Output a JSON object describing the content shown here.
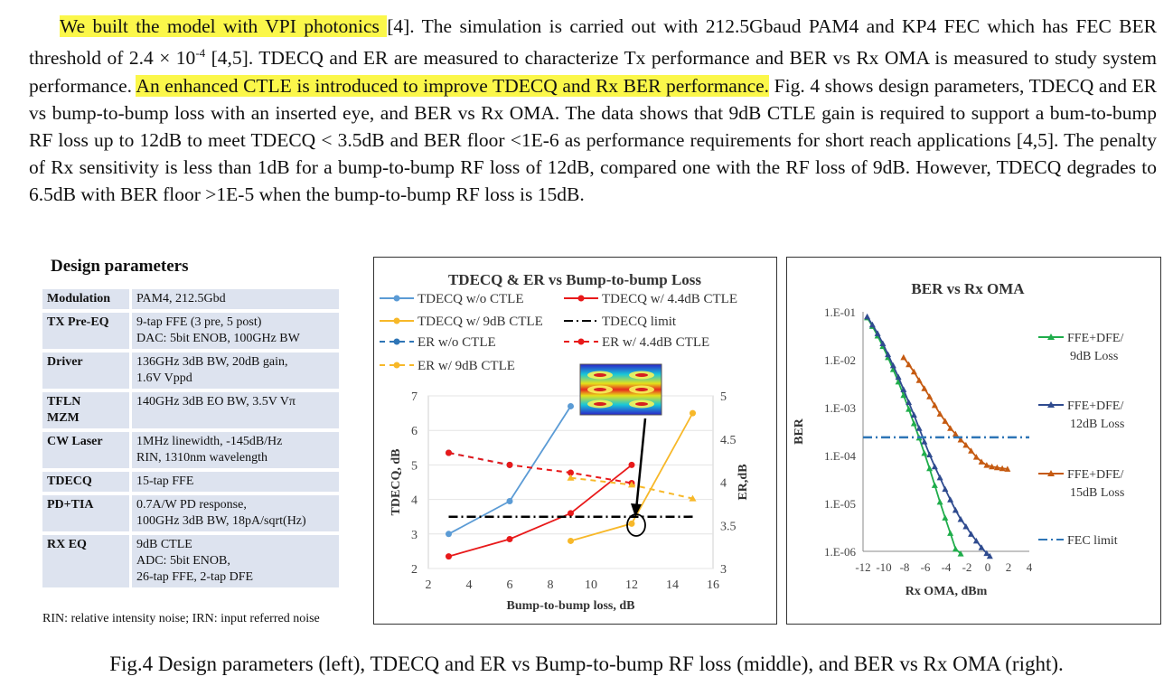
{
  "paragraph": {
    "hl1": "We built the model with VPI photonics ",
    "p1": "[4]. The simulation is carried out with 212.5Gbaud PAM4 and KP4 FEC which has FEC BER threshold of 2.4 × 10",
    "sup": "-4",
    "p2": " [4,5]. TDECQ and ER are measured to characterize Tx performance and BER vs Rx OMA is measured to study system performance. ",
    "hl2": "An enhanced CTLE is introduced to improve TDECQ and Rx BER performance.",
    "p3": " Fig. 4 shows design parameters, TDECQ and ER vs bump-to-bump loss with an inserted eye, and BER vs Rx OMA. The data shows that 9dB CTLE gain is required to support a bum-to-bump RF loss up to 12dB to meet TDECQ < 3.5dB and BER floor <1E-6 as performance requirements for short reach applications [4,5]. The penalty of Rx sensitivity is less than 1dB for a bump-to-bump RF loss of 12dB, compared one with the RF loss of 9dB. However, TDECQ degrades to 6.5dB with BER floor >1E-5 when the bump-to-bump RF loss is 15dB."
  },
  "design": {
    "title": "Design parameters",
    "rows": [
      {
        "k": "Modulation",
        "v": "PAM4, 212.5Gbd"
      },
      {
        "k": "TX Pre-EQ",
        "v": "9-tap FFE (3 pre, 5 post)\nDAC: 5bit ENOB, 100GHz BW"
      },
      {
        "k": "Driver",
        "v": "136GHz 3dB BW, 20dB gain,\n1.6V Vppd"
      },
      {
        "k": "TFLN\nMZM",
        "v": "140GHz 3dB EO BW, 3.5V Vπ"
      },
      {
        "k": "CW Laser",
        "v": "1MHz linewidth, -145dB/Hz\nRIN, 1310nm wavelength"
      },
      {
        "k": "TDECQ",
        "v": "15-tap FFE"
      },
      {
        "k": "PD+TIA",
        "v": "0.7A/W PD response,\n100GHz 3dB BW, 18pA/sqrt(Hz)"
      },
      {
        "k": "RX EQ",
        "v": "9dB CTLE\nADC: 5bit ENOB,\n26-tap FFE, 2-tap DFE"
      }
    ],
    "footnote": "RIN: relative intensity noise; IRN: input referred noise"
  },
  "chart_data": [
    {
      "type": "line",
      "title": "TDECQ & ER vs Bump-to-bump  Loss",
      "xlabel": "Bump-to-bump loss, dB",
      "ylabel": "TDECQ, dB",
      "y2label": "ER,dB",
      "xlim": [
        2,
        16
      ],
      "ylim": [
        2,
        7
      ],
      "y2lim": [
        3,
        5
      ],
      "xticks": [
        "2",
        "4",
        "6",
        "8",
        "10",
        "12",
        "14",
        "16"
      ],
      "yticks": [
        "2",
        "3",
        "4",
        "5",
        "6",
        "7"
      ],
      "y2ticks": [
        "3",
        "3.5",
        "4",
        "4.5",
        "5"
      ],
      "legend_position": "top",
      "series": [
        {
          "name": "TDECQ w/o CTLE",
          "color": "#5b9bd5",
          "axis": "left",
          "style": "solid",
          "x": [
            3,
            6,
            9
          ],
          "y": [
            3.0,
            3.95,
            6.7
          ]
        },
        {
          "name": "TDECQ w/ 4.4dB CTLE",
          "color": "#e8191a",
          "axis": "left",
          "style": "solid",
          "x": [
            3,
            6,
            9,
            12
          ],
          "y": [
            2.35,
            2.85,
            3.6,
            5.0
          ]
        },
        {
          "name": "TDECQ w/ 9dB CTLE",
          "color": "#f7b829",
          "axis": "left",
          "style": "solid",
          "x": [
            9,
            12,
            15
          ],
          "y": [
            2.8,
            3.3,
            6.5
          ]
        },
        {
          "name": "TDECQ limit",
          "color": "#000000",
          "axis": "left",
          "style": "dashdot",
          "x": [
            3,
            15
          ],
          "y": [
            3.5,
            3.5
          ]
        },
        {
          "name": "ER w/o CTLE",
          "color": "#2e75b6",
          "axis": "right",
          "style": "dashed",
          "x": [
            3,
            6
          ],
          "y": [
            4.34,
            4.2
          ]
        },
        {
          "name": "ER w/ 4.4dB CTLE",
          "color": "#e8191a",
          "axis": "right",
          "style": "dashed",
          "x": [
            3,
            6,
            9,
            12
          ],
          "y": [
            4.34,
            4.2,
            4.11,
            3.99
          ]
        },
        {
          "name": "ER w/ 9dB CTLE",
          "color": "#f7b829",
          "axis": "right",
          "style": "dashed",
          "x": [
            9,
            12,
            15
          ],
          "y": [
            4.05,
            3.97,
            3.81
          ]
        }
      ]
    },
    {
      "type": "line",
      "title": "BER vs Rx OMA",
      "xlabel": "Rx OMA, dBm",
      "ylabel": "BER",
      "xlim": [
        -12,
        4
      ],
      "ylim": [
        "1.E-06",
        "1.E-01"
      ],
      "yscale": "log",
      "xticks": [
        "-12",
        "-10",
        "-8",
        "-6",
        "-4",
        "-2",
        "0",
        "2",
        "4"
      ],
      "yticks": [
        "1.E-06",
        "1.E-05",
        "1.E-04",
        "1.E-03",
        "1.E-02",
        "1.E-01"
      ],
      "legend_position": "right",
      "series": [
        {
          "name": "FFE+DFE/\n9dB Loss",
          "color": "#1fad4b",
          "style": "solid",
          "x": [
            -11.6,
            -11.1,
            -10.6,
            -10.1,
            -9.6,
            -9.1,
            -8.6,
            -8.1,
            -7.6,
            -7.1,
            -6.6,
            -6.1,
            -5.6,
            -5.1,
            -4.6,
            -4.1,
            -3.6,
            -3.1,
            -2.6
          ],
          "y": [
            -1.12,
            -1.3,
            -1.5,
            -1.72,
            -1.95,
            -2.2,
            -2.46,
            -2.74,
            -3.03,
            -3.33,
            -3.63,
            -3.95,
            -4.27,
            -4.62,
            -4.97,
            -5.3,
            -5.62,
            -5.95,
            -6.05
          ]
        },
        {
          "name": "FFE+DFE/\n12dB Loss",
          "color": "#2f4b8f",
          "style": "solid",
          "x": [
            -11.6,
            -11.1,
            -10.6,
            -10.1,
            -9.6,
            -9.1,
            -8.6,
            -8.1,
            -7.6,
            -7.1,
            -6.6,
            -6.1,
            -5.6,
            -5.1,
            -4.6,
            -4.1,
            -3.6,
            -3.1,
            -2.6,
            -2.1,
            -1.6,
            -1.1,
            -0.6,
            -0.1,
            0.2
          ],
          "y": [
            -1.1,
            -1.27,
            -1.45,
            -1.66,
            -1.89,
            -2.12,
            -2.36,
            -2.62,
            -2.89,
            -3.15,
            -3.43,
            -3.71,
            -3.98,
            -4.23,
            -4.46,
            -4.7,
            -4.92,
            -5.14,
            -5.33,
            -5.48,
            -5.64,
            -5.78,
            -5.92,
            -6.04,
            -6.1
          ]
        },
        {
          "name": "FFE+DFE/\n15dB Loss",
          "color": "#c55a11",
          "style": "solid",
          "x": [
            -8.1,
            -7.6,
            -7.1,
            -6.6,
            -6.1,
            -5.6,
            -5.1,
            -4.6,
            -4.1,
            -3.6,
            -3.1,
            -2.6,
            -2.1,
            -1.6,
            -1.1,
            -0.6,
            -0.1,
            0.4,
            0.9,
            1.4,
            1.9
          ],
          "y": [
            -1.95,
            -2.1,
            -2.25,
            -2.43,
            -2.6,
            -2.77,
            -2.95,
            -3.13,
            -3.28,
            -3.43,
            -3.55,
            -3.67,
            -3.78,
            -3.9,
            -4.03,
            -4.13,
            -4.2,
            -4.23,
            -4.25,
            -4.27,
            -4.28
          ]
        },
        {
          "name": "FEC limit",
          "color": "#2e75b6",
          "style": "dashdot",
          "x": [
            -12,
            4
          ],
          "y": [
            -3.62,
            -3.62
          ]
        }
      ]
    }
  ],
  "caption": "Fig.4 Design parameters (left), TDECQ and ER vs Bump-to-bump RF loss (middle), and BER vs Rx OMA (right)."
}
